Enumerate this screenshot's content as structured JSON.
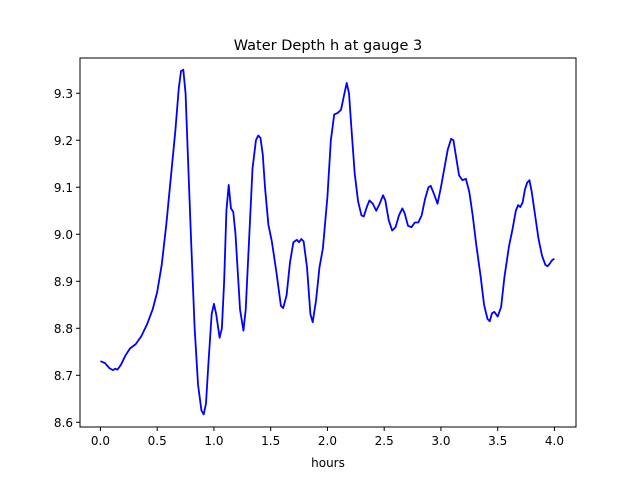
{
  "chart_data": {
    "type": "line",
    "title": "Water Depth h at gauge 3",
    "xlabel": "hours",
    "ylabel": "",
    "xlim": [
      -0.18,
      4.19
    ],
    "ylim": [
      8.59,
      9.375
    ],
    "xticks": [
      0.0,
      0.5,
      1.0,
      1.5,
      2.0,
      2.5,
      3.0,
      3.5,
      4.0
    ],
    "xtick_labels": [
      "0.0",
      "0.5",
      "1.0",
      "1.5",
      "2.0",
      "2.5",
      "3.0",
      "3.5",
      "4.0"
    ],
    "yticks": [
      8.6,
      8.7,
      8.8,
      8.9,
      9.0,
      9.1,
      9.2,
      9.3
    ],
    "ytick_labels": [
      "8.6",
      "8.7",
      "8.8",
      "8.9",
      "9.0",
      "9.1",
      "9.2",
      "9.3"
    ],
    "grid": false,
    "series": [
      {
        "color": "#0000ff",
        "points": [
          [
            0.0,
            8.73
          ],
          [
            0.04,
            8.726
          ],
          [
            0.08,
            8.715
          ],
          [
            0.11,
            8.711
          ],
          [
            0.13,
            8.714
          ],
          [
            0.15,
            8.712
          ],
          [
            0.18,
            8.722
          ],
          [
            0.22,
            8.742
          ],
          [
            0.26,
            8.757
          ],
          [
            0.31,
            8.766
          ],
          [
            0.36,
            8.783
          ],
          [
            0.41,
            8.808
          ],
          [
            0.46,
            8.84
          ],
          [
            0.5,
            8.877
          ],
          [
            0.54,
            8.935
          ],
          [
            0.58,
            9.02
          ],
          [
            0.62,
            9.12
          ],
          [
            0.66,
            9.22
          ],
          [
            0.69,
            9.31
          ],
          [
            0.71,
            9.347
          ],
          [
            0.73,
            9.35
          ],
          [
            0.75,
            9.3
          ],
          [
            0.77,
            9.17
          ],
          [
            0.8,
            8.98
          ],
          [
            0.83,
            8.8
          ],
          [
            0.86,
            8.68
          ],
          [
            0.89,
            8.625
          ],
          [
            0.91,
            8.617
          ],
          [
            0.93,
            8.64
          ],
          [
            0.95,
            8.72
          ],
          [
            0.98,
            8.83
          ],
          [
            1.0,
            8.852
          ],
          [
            1.02,
            8.83
          ],
          [
            1.05,
            8.78
          ],
          [
            1.07,
            8.8
          ],
          [
            1.09,
            8.9
          ],
          [
            1.11,
            9.05
          ],
          [
            1.13,
            9.105
          ],
          [
            1.15,
            9.055
          ],
          [
            1.17,
            9.048
          ],
          [
            1.19,
            9.0
          ],
          [
            1.21,
            8.92
          ],
          [
            1.23,
            8.84
          ],
          [
            1.26,
            8.795
          ],
          [
            1.28,
            8.84
          ],
          [
            1.31,
            8.99
          ],
          [
            1.34,
            9.14
          ],
          [
            1.37,
            9.2
          ],
          [
            1.39,
            9.21
          ],
          [
            1.41,
            9.205
          ],
          [
            1.43,
            9.17
          ],
          [
            1.45,
            9.1
          ],
          [
            1.48,
            9.02
          ],
          [
            1.51,
            8.985
          ],
          [
            1.55,
            8.92
          ],
          [
            1.59,
            8.848
          ],
          [
            1.61,
            8.843
          ],
          [
            1.64,
            8.87
          ],
          [
            1.67,
            8.94
          ],
          [
            1.7,
            8.983
          ],
          [
            1.73,
            8.988
          ],
          [
            1.75,
            8.983
          ],
          [
            1.77,
            8.99
          ],
          [
            1.79,
            8.985
          ],
          [
            1.82,
            8.93
          ],
          [
            1.85,
            8.83
          ],
          [
            1.87,
            8.813
          ],
          [
            1.9,
            8.86
          ],
          [
            1.93,
            8.93
          ],
          [
            1.96,
            8.97
          ],
          [
            2.0,
            9.08
          ],
          [
            2.03,
            9.2
          ],
          [
            2.06,
            9.255
          ],
          [
            2.09,
            9.258
          ],
          [
            2.12,
            9.265
          ],
          [
            2.15,
            9.3
          ],
          [
            2.17,
            9.322
          ],
          [
            2.19,
            9.3
          ],
          [
            2.21,
            9.23
          ],
          [
            2.24,
            9.13
          ],
          [
            2.27,
            9.07
          ],
          [
            2.3,
            9.04
          ],
          [
            2.32,
            9.038
          ],
          [
            2.35,
            9.06
          ],
          [
            2.37,
            9.072
          ],
          [
            2.4,
            9.065
          ],
          [
            2.43,
            9.05
          ],
          [
            2.46,
            9.065
          ],
          [
            2.49,
            9.083
          ],
          [
            2.51,
            9.072
          ],
          [
            2.54,
            9.03
          ],
          [
            2.57,
            9.008
          ],
          [
            2.6,
            9.015
          ],
          [
            2.63,
            9.04
          ],
          [
            2.66,
            9.055
          ],
          [
            2.68,
            9.045
          ],
          [
            2.71,
            9.018
          ],
          [
            2.74,
            9.015
          ],
          [
            2.77,
            9.025
          ],
          [
            2.8,
            9.025
          ],
          [
            2.83,
            9.04
          ],
          [
            2.86,
            9.075
          ],
          [
            2.89,
            9.1
          ],
          [
            2.91,
            9.103
          ],
          [
            2.94,
            9.085
          ],
          [
            2.97,
            9.065
          ],
          [
            3.0,
            9.1
          ],
          [
            3.03,
            9.14
          ],
          [
            3.06,
            9.18
          ],
          [
            3.09,
            9.203
          ],
          [
            3.11,
            9.2
          ],
          [
            3.13,
            9.17
          ],
          [
            3.16,
            9.125
          ],
          [
            3.19,
            9.115
          ],
          [
            3.22,
            9.118
          ],
          [
            3.25,
            9.09
          ],
          [
            3.28,
            9.04
          ],
          [
            3.31,
            8.98
          ],
          [
            3.35,
            8.91
          ],
          [
            3.38,
            8.85
          ],
          [
            3.41,
            8.82
          ],
          [
            3.43,
            8.815
          ],
          [
            3.45,
            8.832
          ],
          [
            3.47,
            8.835
          ],
          [
            3.5,
            8.825
          ],
          [
            3.53,
            8.845
          ],
          [
            3.56,
            8.91
          ],
          [
            3.6,
            8.975
          ],
          [
            3.63,
            9.01
          ],
          [
            3.66,
            9.05
          ],
          [
            3.68,
            9.062
          ],
          [
            3.7,
            9.058
          ],
          [
            3.72,
            9.068
          ],
          [
            3.74,
            9.095
          ],
          [
            3.76,
            9.11
          ],
          [
            3.78,
            9.115
          ],
          [
            3.8,
            9.09
          ],
          [
            3.83,
            9.04
          ],
          [
            3.86,
            8.99
          ],
          [
            3.89,
            8.955
          ],
          [
            3.92,
            8.935
          ],
          [
            3.94,
            8.932
          ],
          [
            3.96,
            8.938
          ],
          [
            3.98,
            8.945
          ],
          [
            4.0,
            8.948
          ]
        ]
      }
    ]
  }
}
